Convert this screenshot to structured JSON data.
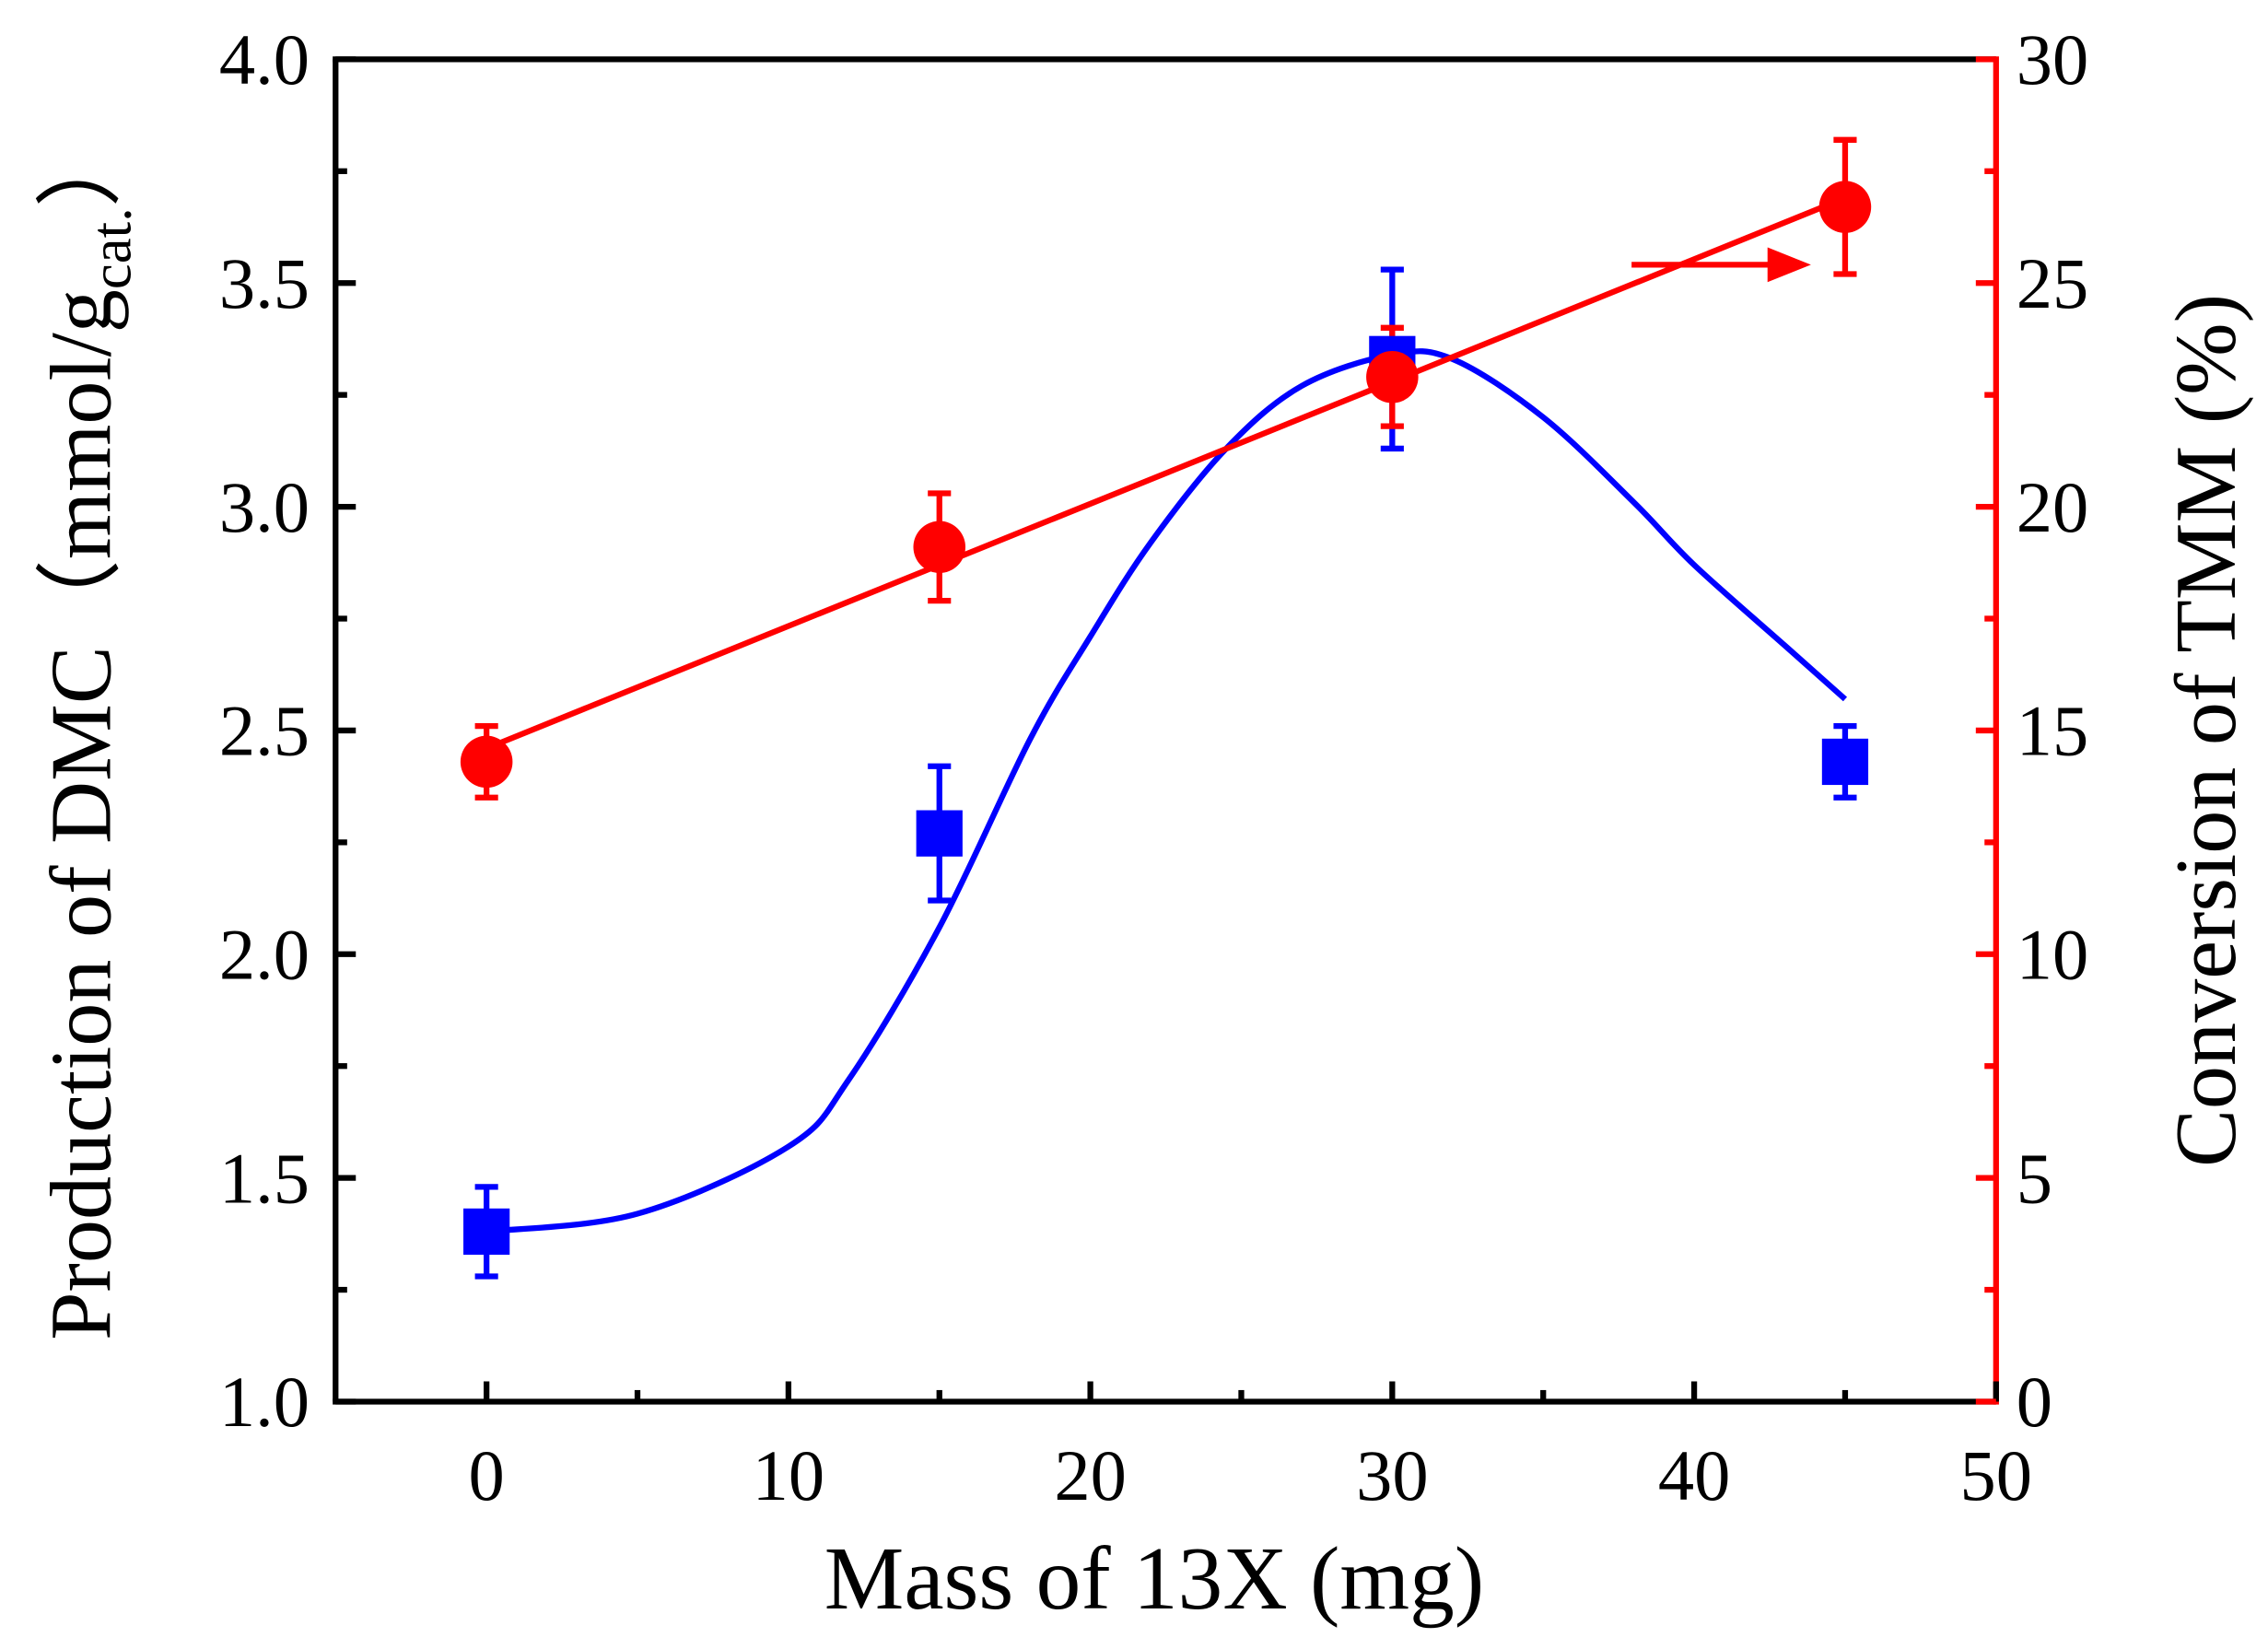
{
  "chart_data": {
    "type": "scatter",
    "xlabel": "Mass of 13X (mg)",
    "ylabel_left": "Production of DMC（mmol/g",
    "ylabel_left_sub": "cat.",
    "ylabel_left_close": "）",
    "ylabel_right": "Conversion of TMM (%)",
    "xlim": [
      -5,
      50
    ],
    "ylim_left": [
      1.0,
      4.0
    ],
    "ylim_right": [
      0,
      30
    ],
    "x_ticks": [
      "0",
      "10",
      "20",
      "30",
      "40",
      "50"
    ],
    "y_left_ticks": [
      "1.0",
      "1.5",
      "2.0",
      "2.5",
      "3.0",
      "3.5",
      "4.0"
    ],
    "y_right_ticks": [
      "0",
      "5",
      "10",
      "15",
      "20",
      "25",
      "30"
    ],
    "colors": {
      "dmc": "#0000ff",
      "tmm": "#ff0000",
      "axis": "#000000"
    },
    "series": [
      {
        "name": "Production of DMC",
        "axis": "left",
        "marker": "square",
        "x": [
          0,
          15,
          30,
          45
        ],
        "y": [
          1.38,
          2.27,
          3.33,
          2.43
        ],
        "yerr": [
          0.1,
          0.15,
          0.2,
          0.08
        ],
        "fit": {
          "type": "smooth curve",
          "x": [
            0,
            5,
            10,
            12,
            15,
            18,
            20,
            22,
            24.5,
            27,
            30,
            32,
            35,
            38,
            40,
            43,
            45
          ],
          "y": [
            1.38,
            1.42,
            1.57,
            1.72,
            2.06,
            2.48,
            2.71,
            2.92,
            3.13,
            3.27,
            3.34,
            3.33,
            3.2,
            3.01,
            2.87,
            2.69,
            2.57
          ]
        }
      },
      {
        "name": "Conversion of TMM",
        "axis": "right",
        "marker": "circle",
        "x": [
          0,
          15,
          30,
          45
        ],
        "y": [
          14.3,
          19.1,
          22.9,
          26.7
        ],
        "yerr": [
          0.8,
          1.2,
          1.1,
          1.5
        ],
        "fit": {
          "type": "linear"
        }
      }
    ],
    "annotations": [
      {
        "type": "arrow",
        "direction": "right",
        "meaning": "series uses right axis",
        "series": "Conversion of TMM"
      }
    ]
  }
}
